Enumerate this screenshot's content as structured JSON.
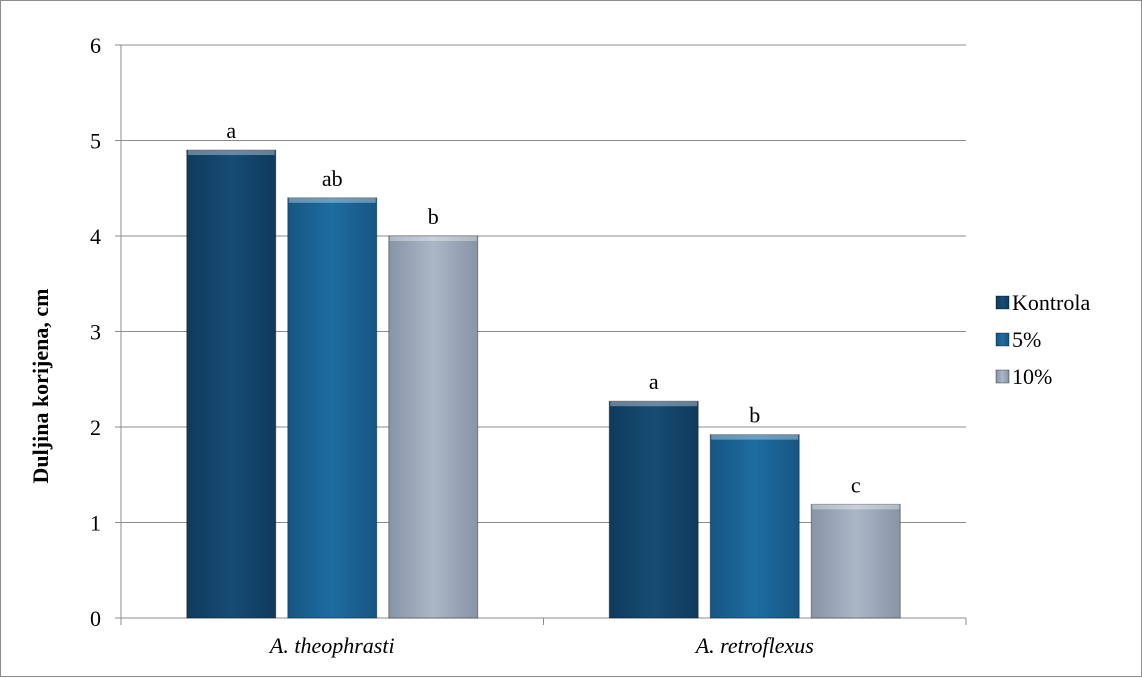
{
  "chart_data": {
    "type": "bar",
    "categories": [
      "A. theophrasti",
      "A. retroflexus"
    ],
    "series": [
      {
        "name": "Kontrola",
        "values": [
          4.9,
          2.27
        ],
        "labels": [
          "a",
          "a"
        ],
        "color": "#174c74"
      },
      {
        "name": "5%",
        "values": [
          4.4,
          1.92
        ],
        "labels": [
          "ab",
          "b"
        ],
        "color": "#1d6496"
      },
      {
        "name": "10%",
        "values": [
          4.0,
          1.19
        ],
        "labels": [
          "b",
          "c"
        ],
        "color": "#a4b1c2"
      }
    ],
    "ylabel": "Duljina korijena, cm",
    "xlabel": "",
    "ylim": [
      0,
      6
    ],
    "yticks": [
      "0",
      "1",
      "2",
      "3",
      "4",
      "5",
      "6"
    ],
    "grid": true,
    "legend_position": "right"
  }
}
